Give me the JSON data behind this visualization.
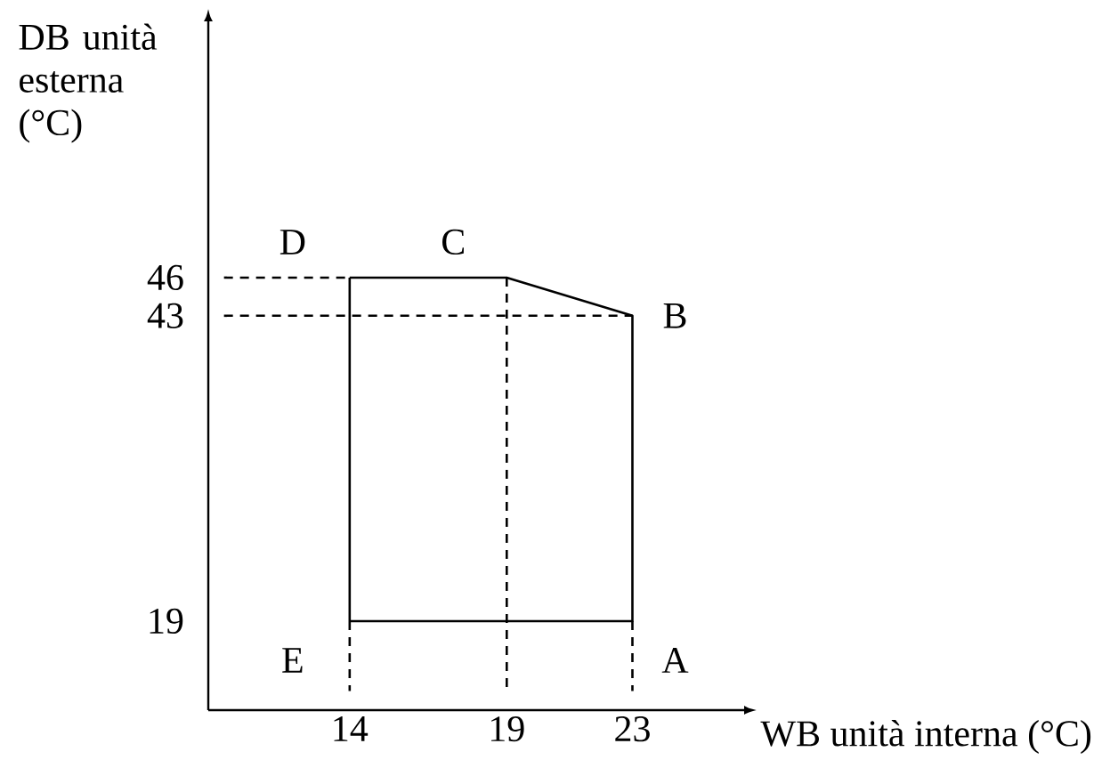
{
  "chart_data": {
    "type": "line",
    "xlabel": "WB unità interna (°C)",
    "ylabel": "DB unità esterna (°C)",
    "xlim": [
      9.5,
      26.5
    ],
    "ylim": [
      12,
      66
    ],
    "xticks": [
      14,
      19,
      23
    ],
    "yticks": [
      19,
      43,
      46
    ],
    "marker": "none",
    "series": [
      {
        "color": "#000000",
        "x": [
          14,
          23,
          23,
          19,
          14
        ],
        "values": [
          19,
          19,
          43,
          46,
          46
        ]
      },
      {
        "color": "#000000",
        "x": [
          14,
          14
        ],
        "values": [
          46,
          19
        ]
      },
      {
        "color": "#000000",
        "line_style": "dashed",
        "x": [
          10,
          14
        ],
        "values": [
          46,
          46
        ]
      },
      {
        "color": "#000000",
        "line_style": "dashed",
        "x": [
          10,
          23
        ],
        "values": [
          43,
          43
        ]
      },
      {
        "color": "#000000",
        "line_style": "dashed",
        "x": [
          14,
          14
        ],
        "values": [
          19,
          13.5
        ]
      },
      {
        "color": "#000000",
        "line_style": "dashed",
        "x": [
          19,
          19
        ],
        "values": [
          46,
          13.5
        ]
      },
      {
        "color": "#000000",
        "line_style": "dashed",
        "x": [
          23,
          23
        ],
        "values": [
          19,
          13.5
        ]
      }
    ],
    "annotations": [
      {
        "text": "A",
        "x": 23,
        "y": 19
      },
      {
        "text": "B",
        "x": 23,
        "y": 43
      },
      {
        "text": "C",
        "x": 19,
        "y": 46
      },
      {
        "text": "D",
        "x": 14,
        "y": 46
      },
      {
        "text": "E",
        "x": 14,
        "y": 19
      }
    ]
  }
}
